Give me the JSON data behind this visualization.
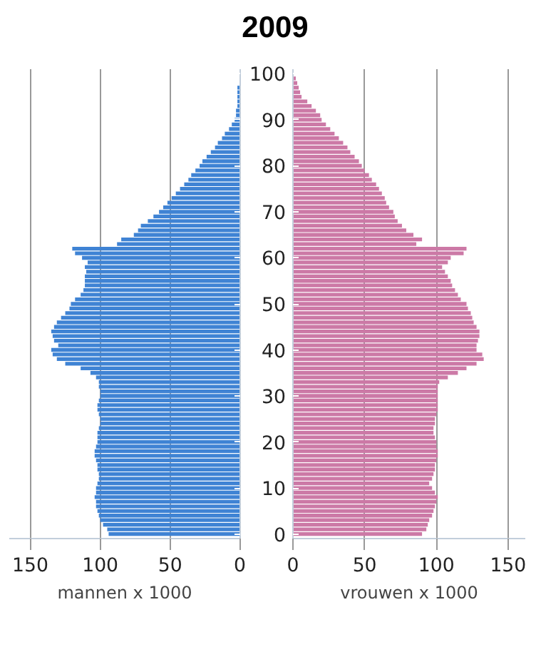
{
  "chart_data": [
    {
      "type": "bar",
      "orientation": "horizontal",
      "title": "2009",
      "xlabel": "mannen x 1000",
      "color": "#3f83d4",
      "grid": "x",
      "tick_labels": "x",
      "xlim": [
        165,
        0
      ],
      "xticks": [
        150,
        100,
        50,
        0
      ],
      "ylim": [
        -1,
        101
      ],
      "yticks": [
        0,
        10,
        20,
        30,
        40,
        50,
        60,
        70,
        80,
        90,
        100
      ],
      "x": [
        0,
        1,
        2,
        3,
        4,
        5,
        6,
        7,
        8,
        9,
        10,
        11,
        12,
        13,
        14,
        15,
        16,
        17,
        18,
        19,
        20,
        21,
        22,
        23,
        24,
        25,
        26,
        27,
        28,
        29,
        30,
        31,
        32,
        33,
        34,
        35,
        36,
        37,
        38,
        39,
        40,
        41,
        42,
        43,
        44,
        45,
        46,
        47,
        48,
        49,
        50,
        51,
        52,
        53,
        54,
        55,
        56,
        57,
        58,
        59,
        60,
        61,
        62,
        63,
        64,
        65,
        66,
        67,
        68,
        69,
        70,
        71,
        72,
        73,
        74,
        75,
        76,
        77,
        78,
        79,
        80,
        81,
        82,
        83,
        84,
        85,
        86,
        87,
        88,
        89,
        90,
        91,
        92,
        93,
        94,
        95,
        96,
        97
      ],
      "values": [
        94,
        95,
        98,
        100,
        101,
        102,
        103,
        103,
        104,
        103,
        103,
        102,
        101,
        101,
        102,
        102,
        103,
        104,
        104,
        103,
        102,
        102,
        102,
        101,
        100,
        100,
        101,
        102,
        102,
        101,
        100,
        100,
        101,
        101,
        103,
        107,
        114,
        125,
        131,
        134,
        135,
        130,
        133,
        134,
        135,
        133,
        131,
        128,
        125,
        122,
        121,
        118,
        114,
        112,
        111,
        111,
        111,
        110,
        111,
        109,
        113,
        118,
        120,
        88,
        85,
        76,
        73,
        71,
        66,
        62,
        58,
        55,
        52,
        49,
        46,
        43,
        40,
        37,
        35,
        32,
        29,
        27,
        24,
        21,
        18,
        16,
        13,
        11,
        8,
        6,
        4,
        3,
        3,
        2,
        2,
        2,
        2,
        2
      ]
    },
    {
      "type": "bar",
      "orientation": "horizontal",
      "xlabel": "vrouwen x 1000",
      "color": "#cc79a6",
      "grid": "x",
      "xlim": [
        0,
        162
      ],
      "xticks": [
        0,
        50,
        100,
        150
      ],
      "ylim": [
        -1,
        101
      ],
      "yticks": [
        0,
        10,
        20,
        30,
        40,
        50,
        60,
        70,
        80,
        90,
        100
      ],
      "x": [
        0,
        1,
        2,
        3,
        4,
        5,
        6,
        7,
        8,
        9,
        10,
        11,
        12,
        13,
        14,
        15,
        16,
        17,
        18,
        19,
        20,
        21,
        22,
        23,
        24,
        25,
        26,
        27,
        28,
        29,
        30,
        31,
        32,
        33,
        34,
        35,
        36,
        37,
        38,
        39,
        40,
        41,
        42,
        43,
        44,
        45,
        46,
        47,
        48,
        49,
        50,
        51,
        52,
        53,
        54,
        55,
        56,
        57,
        58,
        59,
        60,
        61,
        62,
        63,
        64,
        65,
        66,
        67,
        68,
        69,
        70,
        71,
        72,
        73,
        74,
        75,
        76,
        77,
        78,
        79,
        80,
        81,
        82,
        83,
        84,
        85,
        86,
        87,
        88,
        89,
        90,
        91,
        92,
        93,
        94,
        95,
        96,
        97,
        98,
        99
      ],
      "values": [
        90,
        93,
        94,
        95,
        97,
        98,
        99,
        100,
        101,
        99,
        97,
        95,
        97,
        98,
        99,
        99,
        100,
        101,
        101,
        100,
        100,
        99,
        98,
        98,
        99,
        99,
        100,
        101,
        101,
        101,
        101,
        101,
        101,
        102,
        108,
        115,
        121,
        128,
        133,
        132,
        128,
        128,
        129,
        130,
        130,
        128,
        126,
        125,
        124,
        122,
        121,
        117,
        115,
        113,
        111,
        110,
        108,
        106,
        104,
        108,
        110,
        119,
        121,
        86,
        90,
        84,
        79,
        76,
        73,
        71,
        70,
        67,
        65,
        64,
        62,
        60,
        58,
        55,
        53,
        50,
        48,
        46,
        43,
        40,
        38,
        35,
        32,
        29,
        26,
        23,
        20,
        19,
        16,
        13,
        10,
        6,
        5,
        4,
        3,
        2
      ]
    }
  ]
}
